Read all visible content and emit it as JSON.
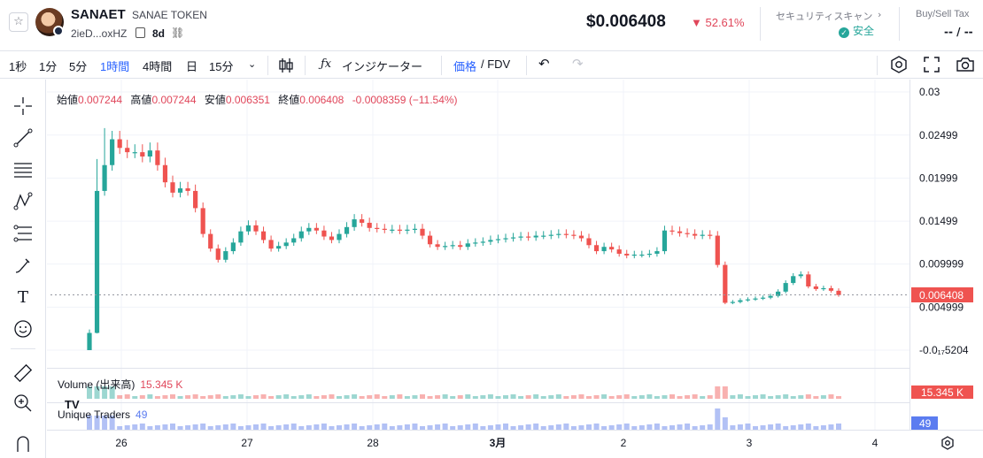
{
  "header": {
    "symbol": "SANAET",
    "name": "SANAE TOKEN",
    "address": "2ieD...oxHZ",
    "age": "8d",
    "price": "$0.006408",
    "change": "▼ 52.61%",
    "scan_label": "セキュリティスキャン",
    "scan_status": "安全",
    "tax_label": "Buy/Sell Tax",
    "tax_value": "-- / --"
  },
  "toolbar": {
    "intervals": [
      "1秒",
      "1分",
      "5分",
      "1時間",
      "4時間",
      "日",
      "15分"
    ],
    "active_interval": "1時間",
    "indicators_label": "インジケーター",
    "price_mode": "価格",
    "fdv_mode": "/ FDV"
  },
  "legend": {
    "open_label": "始値",
    "open": "0.007244",
    "high_label": "高値",
    "high": "0.007244",
    "low_label": "安値",
    "low": "0.006351",
    "close_label": "終値",
    "close": "0.006408",
    "change": "-0.0008359 (−11.54%)"
  },
  "volume": {
    "label": "Volume (出来高)",
    "value": "15.345 K"
  },
  "traders": {
    "label": "Unique Traders",
    "value": "49"
  },
  "axis": {
    "y_ticks": [
      "0.03",
      "0.02499",
      "0.01999",
      "0.01499",
      "0.009999",
      "0.004999",
      "-0.0₁₇5204"
    ],
    "y_tick_values": [
      0.03,
      0.02499,
      0.01999,
      0.01499,
      0.009999,
      0.004999,
      0.0
    ],
    "x_ticks": [
      "26",
      "27",
      "28",
      "3月",
      "2",
      "3",
      "4"
    ],
    "current_price_label": "0.006408",
    "volume_tag": "15.345 K",
    "traders_tag": "49"
  },
  "colors": {
    "up": "#26a69a",
    "down": "#ef5350",
    "accent": "#2962ff",
    "traders": "#9fb1f2"
  },
  "chart_data": {
    "type": "candlestick",
    "interval": "1時間",
    "x_labels": [
      "26",
      "27",
      "28",
      "3月",
      "2",
      "3",
      "4"
    ],
    "ylim": [
      0.0,
      0.03
    ],
    "last_close": 0.006408,
    "ohlc_close_trace": [
      0.002,
      0.0185,
      0.0215,
      0.0245,
      0.0235,
      0.023,
      0.023,
      0.0225,
      0.0232,
      0.0215,
      0.0195,
      0.0183,
      0.0188,
      0.0185,
      0.0165,
      0.0135,
      0.0118,
      0.0105,
      0.0115,
      0.0125,
      0.0138,
      0.0145,
      0.0138,
      0.0128,
      0.0118,
      0.0121,
      0.0125,
      0.013,
      0.0138,
      0.0142,
      0.0139,
      0.0132,
      0.0128,
      0.0135,
      0.0143,
      0.0152,
      0.0148,
      0.0142,
      0.0141,
      0.014,
      0.014,
      0.0139,
      0.014,
      0.0141,
      0.0133,
      0.0123,
      0.012,
      0.0121,
      0.0122,
      0.012,
      0.0124,
      0.0125,
      0.0126,
      0.0128,
      0.0129,
      0.013,
      0.0131,
      0.0132,
      0.0131,
      0.0133,
      0.0133,
      0.0134,
      0.0135,
      0.0134,
      0.0133,
      0.013,
      0.0122,
      0.0115,
      0.012,
      0.0117,
      0.0112,
      0.011,
      0.0111,
      0.0111,
      0.0112,
      0.0115,
      0.0139,
      0.0138,
      0.0136,
      0.0135,
      0.0133,
      0.0134,
      0.0133,
      0.0099,
      0.0055,
      0.0056,
      0.0058,
      0.0059,
      0.006,
      0.0061,
      0.0063,
      0.0068,
      0.0078,
      0.0086,
      0.0088,
      0.0074,
      0.0071,
      0.0072,
      0.0069,
      0.0064
    ]
  }
}
